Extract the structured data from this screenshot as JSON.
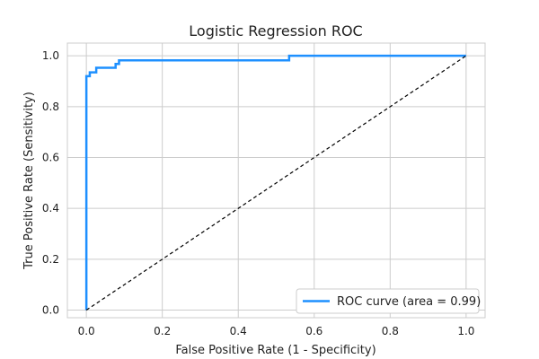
{
  "chart_data": {
    "type": "line",
    "title": "Logistic Regression ROC",
    "xlabel": "False Positive Rate (1 - Specificity)",
    "ylabel": "True Positive Rate (Sensitivity)",
    "xlim": [
      -0.05,
      1.05
    ],
    "ylim": [
      -0.03,
      1.05
    ],
    "xticks": [
      0.0,
      0.2,
      0.4,
      0.6,
      0.8,
      1.0
    ],
    "yticks": [
      0.0,
      0.2,
      0.4,
      0.6,
      0.8,
      1.0
    ],
    "xtick_labels": [
      "0.0",
      "0.2",
      "0.4",
      "0.6",
      "0.8",
      "1.0"
    ],
    "ytick_labels": [
      "0.0",
      "0.2",
      "0.4",
      "0.6",
      "0.8",
      "1.0"
    ],
    "grid": true,
    "legend_position": "lower-right",
    "series": [
      {
        "name": "ROC curve (area = 0.99)",
        "color": "#1e90ff",
        "style": "solid",
        "x": [
          0.0,
          0.0,
          0.0,
          0.009,
          0.009,
          0.026,
          0.026,
          0.077,
          0.077,
          0.086,
          0.086,
          0.534,
          0.534,
          1.0
        ],
        "y": [
          0.0,
          0.89,
          0.92,
          0.92,
          0.935,
          0.935,
          0.953,
          0.953,
          0.968,
          0.968,
          0.982,
          0.982,
          1.0,
          1.0
        ]
      },
      {
        "name": "",
        "color": "#000000",
        "style": "dashed",
        "x": [
          0.0,
          1.0
        ],
        "y": [
          0.0,
          1.0
        ]
      }
    ]
  }
}
